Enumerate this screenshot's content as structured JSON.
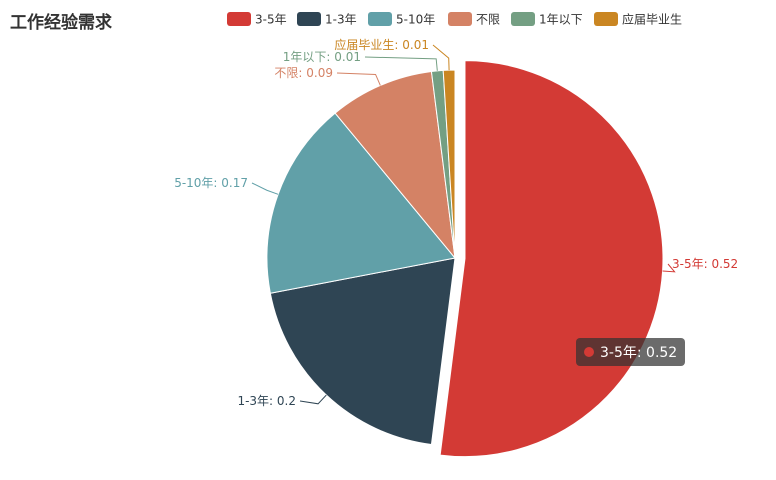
{
  "title": "工作经验需求",
  "chart_data": {
    "type": "pie",
    "title": "工作经验需求",
    "legend_position": "top",
    "slices": [
      {
        "name": "3-5年",
        "value": 0.52,
        "label": "3-5年: 0.52",
        "color": "#d33a35"
      },
      {
        "name": "1-3年",
        "value": 0.2,
        "label": "1-3年: 0.2",
        "color": "#2f4554"
      },
      {
        "name": "5-10年",
        "value": 0.17,
        "label": "5-10年: 0.17",
        "color": "#61a0a8"
      },
      {
        "name": "不限",
        "value": 0.09,
        "label": "不限: 0.09",
        "color": "#d48265"
      },
      {
        "name": "1年以下",
        "value": 0.01,
        "label": "1年以下: 0.01",
        "color": "#749f83"
      },
      {
        "name": "应届毕业生",
        "value": 0.01,
        "label": "应届毕业生: 0.01",
        "color": "#ca8622"
      }
    ]
  },
  "tooltip": {
    "text": "3-5年: 0.52",
    "color": "#d33a35"
  }
}
